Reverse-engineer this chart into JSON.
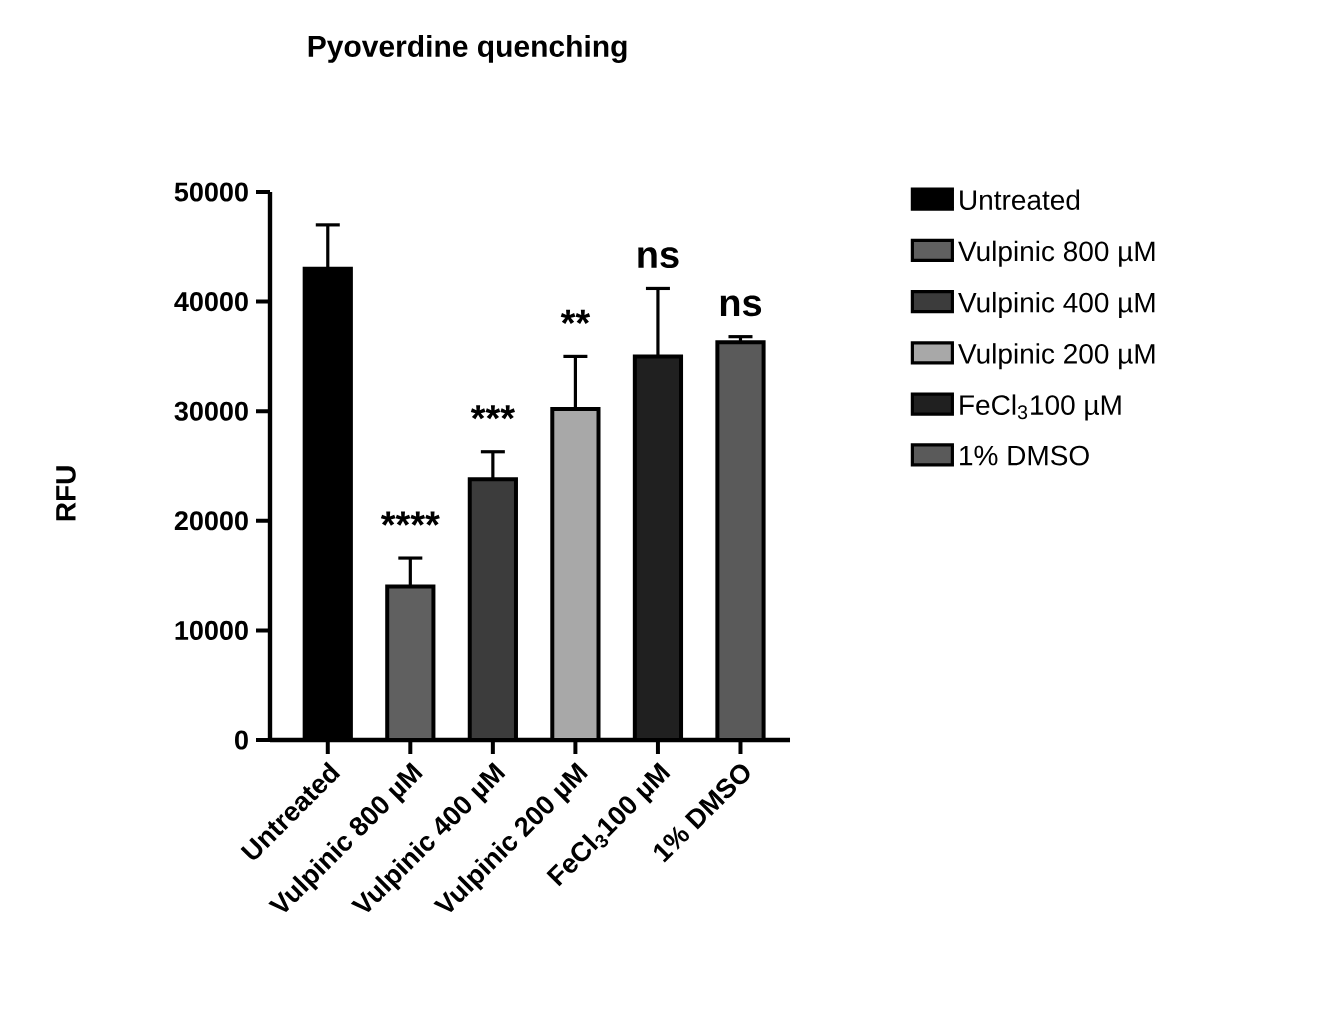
{
  "chart_data": {
    "type": "bar",
    "title": "Pyoverdine quenching",
    "ylabel": "RFU",
    "categories": [
      "Untreated",
      "Vulpinic 800 µM",
      "Vulpinic 400 µM",
      "Vulpinic 200 µM",
      "FeCl$_{3}$100 µM",
      "1% DMSO"
    ],
    "series": [
      {
        "name": "Untreated",
        "color": "#000000",
        "values": [
          43000,
          null,
          null,
          null,
          null,
          null
        ],
        "errors": [
          [
            43000,
            47000
          ],
          null,
          null,
          null,
          null,
          null
        ]
      },
      {
        "name": "Vulpinic 800 µM",
        "color": "#606060",
        "values": [
          null,
          14000,
          null,
          null,
          null,
          null
        ],
        "errors": [
          null,
          [
            14000,
            16600
          ],
          null,
          null,
          null,
          null
        ]
      },
      {
        "name": "Vulpinic 400 µM",
        "color": "#3c3c3c",
        "values": [
          null,
          null,
          23800,
          null,
          null,
          null
        ],
        "errors": [
          null,
          null,
          [
            23800,
            26300
          ],
          null,
          null,
          null
        ]
      },
      {
        "name": "Vulpinic 200 µM",
        "color": "#a8a8a8",
        "values": [
          null,
          null,
          null,
          30200,
          null,
          null
        ],
        "errors": [
          null,
          null,
          null,
          [
            30200,
            35000
          ],
          null,
          null
        ]
      },
      {
        "name": "FeCl$_{3}$100 µM",
        "color": "#202020",
        "values": [
          null,
          null,
          null,
          null,
          35000,
          null
        ],
        "errors": [
          null,
          null,
          null,
          null,
          [
            35000,
            41200
          ],
          null
        ]
      },
      {
        "name": "1% DMSO",
        "color": "#5a5a5a",
        "values": [
          null,
          null,
          null,
          null,
          null,
          36300
        ],
        "errors": [
          null,
          null,
          null,
          null,
          null,
          [
            36300,
            36800
          ]
        ]
      }
    ],
    "ylim": [
      0,
      50000
    ],
    "yticks": [
      0,
      10000,
      20000,
      30000,
      40000,
      50000
    ],
    "legend": "right",
    "annotations": [
      {
        "text": "****",
        "x": "Vulpinic 800 µM",
        "y": 16600
      },
      {
        "text": "***",
        "x": "Vulpinic 400 µM",
        "y": 26300
      },
      {
        "text": "**",
        "x": "Vulpinic 200 µM",
        "y": 35000
      },
      {
        "text": "ns",
        "x": "FeCl$_{3}$100 µM",
        "y": 41200
      },
      {
        "text": "ns",
        "x": "1% DMSO",
        "y": 36800
      }
    ]
  }
}
